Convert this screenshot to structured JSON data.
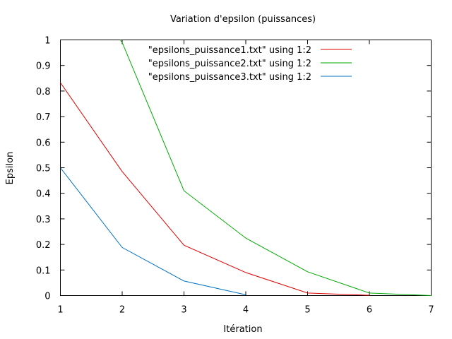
{
  "chart_data": {
    "type": "line",
    "title": "Variation d'epsilon (puissances)",
    "xlabel": "Itération",
    "ylabel": "Epsilon",
    "xlim": [
      1,
      7
    ],
    "ylim": [
      0,
      1
    ],
    "x_ticks": [
      "1",
      "2",
      "3",
      "4",
      "5",
      "6",
      "7"
    ],
    "y_ticks": [
      "0",
      "0.1",
      "0.2",
      "0.3",
      "0.4",
      "0.5",
      "0.6",
      "0.7",
      "0.8",
      "0.9",
      "1"
    ],
    "grid": false,
    "legend_position": "top-right",
    "series": [
      {
        "name": "\"epsilons_puissance1.txt\" using 1:2",
        "color": "#dd0000",
        "x": [
          1,
          2,
          3,
          4,
          5,
          6
        ],
        "y": [
          0.833,
          0.485,
          0.197,
          0.09,
          0.01,
          0.001
        ]
      },
      {
        "name": "\"epsilons_puissance2.txt\" using 1:2",
        "color": "#00aa00",
        "x": [
          1.97,
          2,
          3,
          4,
          5,
          6,
          7
        ],
        "y": [
          1.0,
          0.99,
          0.41,
          0.225,
          0.093,
          0.01,
          0.0
        ]
      },
      {
        "name": "\"epsilons_puissance3.txt\" using 1:2",
        "color": "#0070c0",
        "x": [
          1,
          2,
          3,
          4
        ],
        "y": [
          0.5,
          0.188,
          0.057,
          0.003
        ]
      }
    ]
  }
}
